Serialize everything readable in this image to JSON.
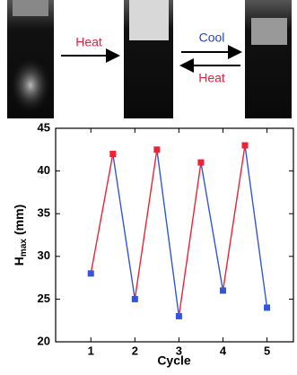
{
  "annotations": [
    {
      "text": "Heat",
      "color": "#e8203a",
      "direction": "right"
    },
    {
      "text": "Cool",
      "color": "#2244cc",
      "direction": "right"
    },
    {
      "text": "Heat",
      "color": "#e8203a",
      "direction": "left"
    }
  ],
  "chart_data": {
    "type": "line",
    "xlabel": "Cycle",
    "ylabel": {
      "main": "H",
      "sub": "max",
      "unit": "(mm)"
    },
    "xlim": [
      0.2,
      5.6
    ],
    "xticks": [
      1,
      2,
      3,
      4,
      5
    ],
    "ylim": [
      20,
      45
    ],
    "yticks": [
      20,
      25,
      30,
      35,
      40,
      45
    ],
    "series": [
      {
        "color": "#3355dd",
        "x": [
          1,
          2,
          3,
          4,
          5
        ],
        "values": [
          28,
          25,
          23,
          26,
          24
        ]
      },
      {
        "color": "#ee2233",
        "x": [
          1.5,
          2.5,
          3.5,
          4.5
        ],
        "values": [
          42,
          42.5,
          41,
          43
        ]
      }
    ]
  }
}
